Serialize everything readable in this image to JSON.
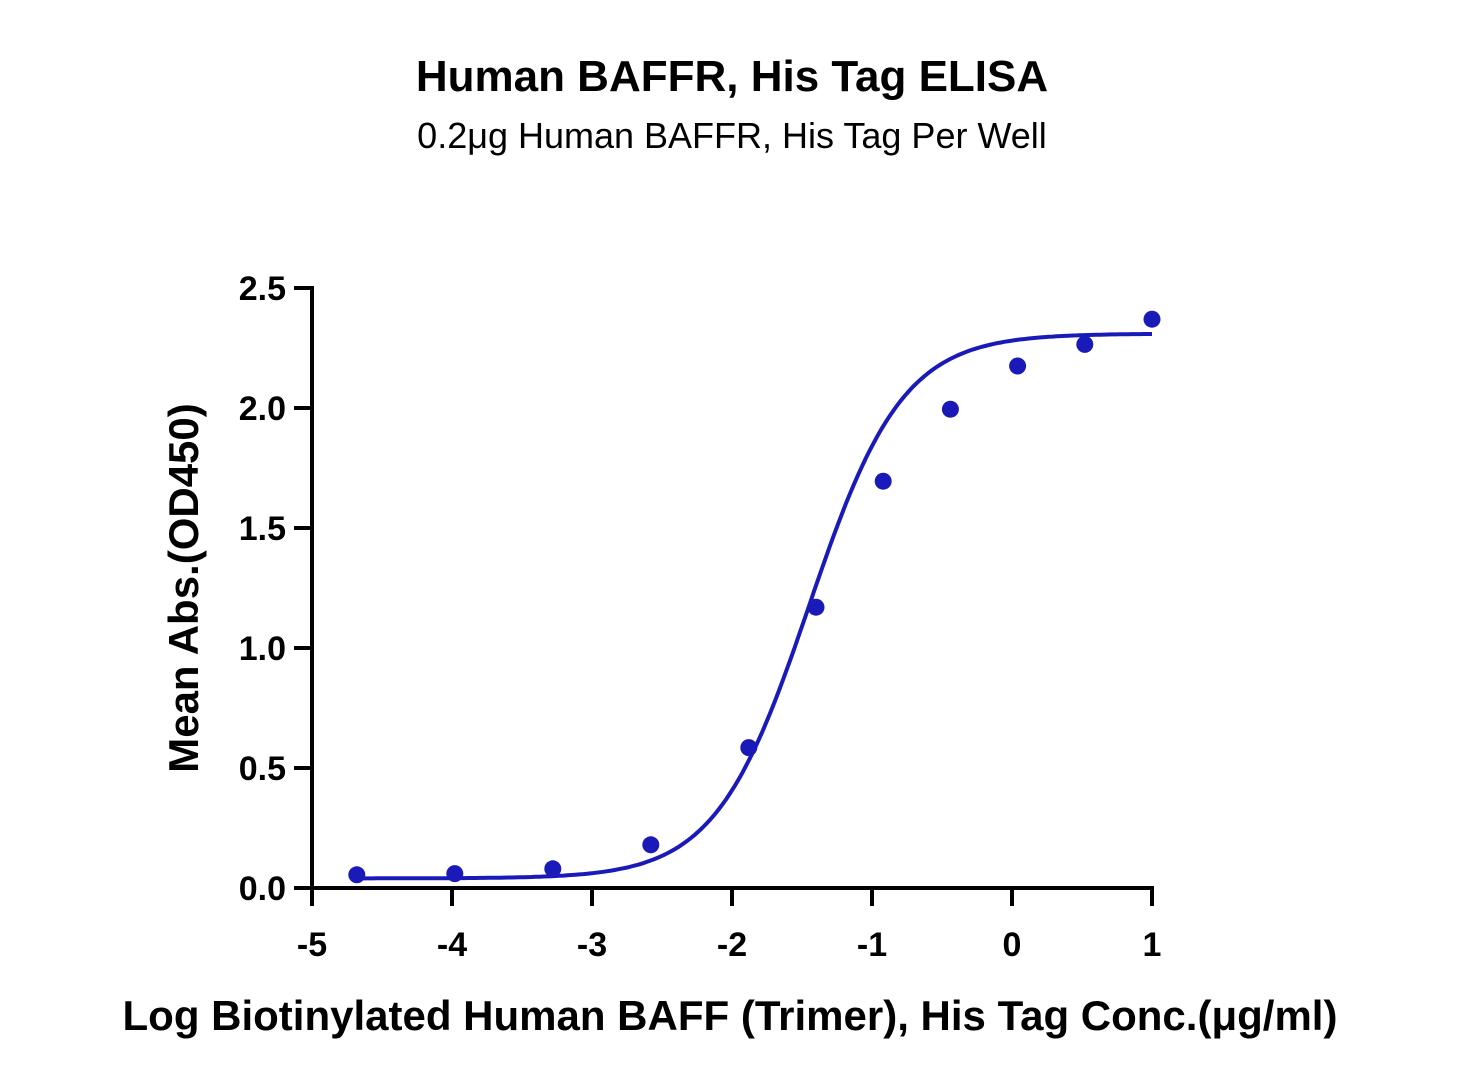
{
  "chart_data": {
    "type": "scatter",
    "title": "Human BAFFR, His Tag ELISA",
    "subtitle": "0.2μg Human BAFFR, His Tag Per Well",
    "xlabel": "Log Biotinylated Human BAFF (Trimer), His Tag Conc.(μg/ml)",
    "ylabel": "Mean Abs.(OD450)",
    "xlim": [
      -5,
      1
    ],
    "ylim": [
      0,
      2.5
    ],
    "xticks": [
      "-5",
      "-4",
      "-3",
      "-2",
      "-1",
      "0",
      "1"
    ],
    "yticks": [
      "0.0",
      "0.5",
      "1.0",
      "1.5",
      "2.0",
      "2.5"
    ],
    "grid": false,
    "series": [
      {
        "x": [
          -4.68,
          -3.98,
          -3.28,
          -2.58,
          -1.88,
          -1.4,
          -0.92,
          -0.44,
          0.04,
          0.52,
          1.0
        ],
        "y": [
          0.055,
          0.06,
          0.08,
          0.18,
          0.585,
          1.17,
          1.695,
          1.995,
          2.175,
          2.265,
          2.37
        ]
      }
    ],
    "fit": {
      "model": "4PL",
      "bottom": 0.04,
      "top": 2.31,
      "logEC50": -1.45,
      "hill": 1.3
    },
    "color": "#1a1ab8"
  }
}
